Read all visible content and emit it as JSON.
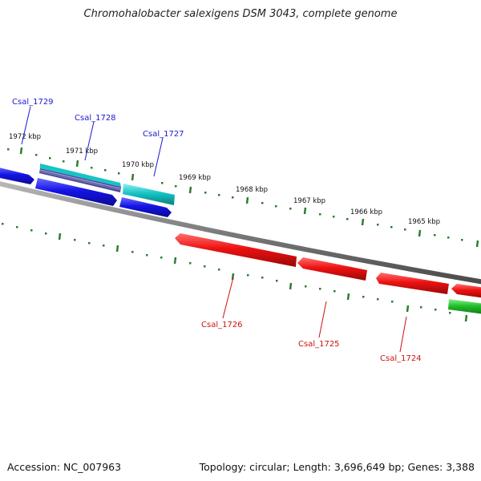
{
  "title": "Chromohalobacter salexigens DSM 3043, complete genome",
  "footer": {
    "accession": "Accession: NC_007963",
    "summary": "Topology: circular; Length: 3,696,649 bp; Genes: 3,388"
  },
  "colors": {
    "backbone": "#7a7a7a",
    "tick": "#2e7d2e",
    "forward_label": "#1a1acc",
    "reverse_label": "#cc1111",
    "blue_gene": "#1414e6",
    "cyan_gene": "#16c4c4",
    "red_gene": "#ee1111",
    "green_gene": "#22c02a",
    "multi_gene": "#5a5aa0"
  },
  "scale_labels": [
    "1972 kbp",
    "1971 kbp",
    "1970 kbp",
    "1969 kbp",
    "1968 kbp",
    "1967 kbp",
    "1966 kbp",
    "1965 kbp"
  ],
  "gene_labels": {
    "forward": [
      "Csal_1729",
      "Csal_1728",
      "Csal_1727"
    ],
    "reverse": [
      "Csal_1726",
      "Csal_1725",
      "Csal_1724"
    ]
  }
}
